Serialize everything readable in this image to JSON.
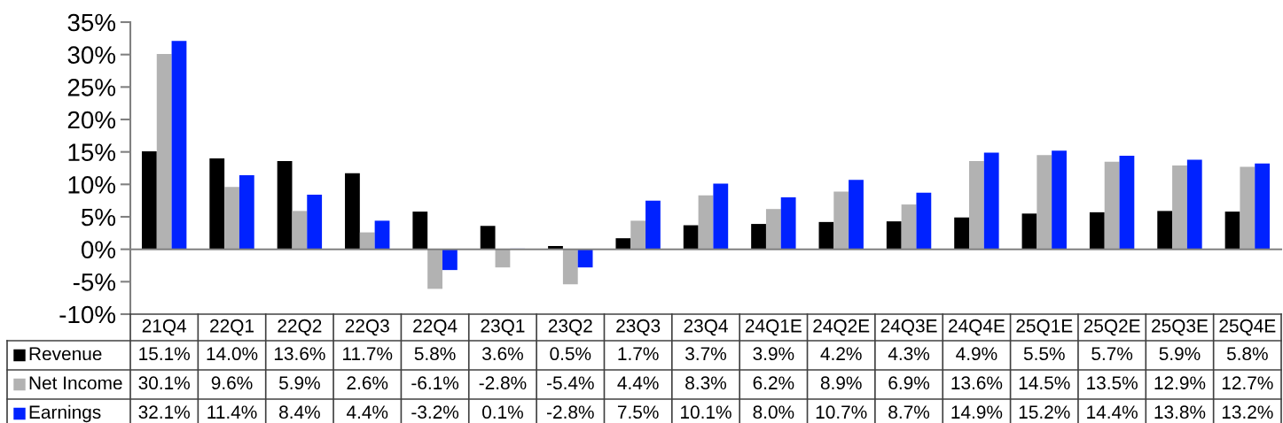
{
  "chart_data": {
    "type": "bar",
    "categories": [
      "21Q4",
      "22Q1",
      "22Q2",
      "22Q3",
      "22Q4",
      "23Q1",
      "23Q2",
      "23Q3",
      "23Q4",
      "24Q1E",
      "24Q2E",
      "24Q3E",
      "24Q4E",
      "25Q1E",
      "25Q2E",
      "25Q3E",
      "25Q4E"
    ],
    "series": [
      {
        "name": "Revenue",
        "color": "#000000",
        "values": [
          15.1,
          14.0,
          13.6,
          11.7,
          5.8,
          3.6,
          0.5,
          1.7,
          3.7,
          3.9,
          4.2,
          4.3,
          4.9,
          5.5,
          5.7,
          5.9,
          5.8
        ],
        "value_labels": [
          "15.1%",
          "14.0%",
          "13.6%",
          "11.7%",
          "5.8%",
          "3.6%",
          "0.5%",
          "1.7%",
          "3.7%",
          "3.9%",
          "4.2%",
          "4.3%",
          "4.9%",
          "5.5%",
          "5.7%",
          "5.9%",
          "5.8%"
        ]
      },
      {
        "name": "Net Income",
        "color": "#b2b2b2",
        "values": [
          30.1,
          9.6,
          5.9,
          2.6,
          -6.1,
          -2.8,
          -5.4,
          4.4,
          8.3,
          6.2,
          8.9,
          6.9,
          13.6,
          14.5,
          13.5,
          12.9,
          12.7
        ],
        "value_labels": [
          "30.1%",
          "9.6%",
          "5.9%",
          "2.6%",
          "-6.1%",
          "-2.8%",
          "-5.4%",
          "4.4%",
          "8.3%",
          "6.2%",
          "8.9%",
          "6.9%",
          "13.6%",
          "14.5%",
          "13.5%",
          "12.9%",
          "12.7%"
        ]
      },
      {
        "name": "Earnings",
        "color": "#0022ff",
        "values": [
          32.1,
          11.4,
          8.4,
          4.4,
          -3.2,
          0.1,
          -2.8,
          7.5,
          10.1,
          8.0,
          10.7,
          8.7,
          14.9,
          15.2,
          14.4,
          13.8,
          13.2
        ],
        "value_labels": [
          "32.1%",
          "11.4%",
          "8.4%",
          "4.4%",
          "-3.2%",
          "0.1%",
          "-2.8%",
          "7.5%",
          "10.1%",
          "8.0%",
          "10.7%",
          "8.7%",
          "14.9%",
          "15.2%",
          "14.4%",
          "13.8%",
          "13.2%"
        ]
      }
    ],
    "ylim": [
      -10,
      35
    ],
    "yticks": [
      {
        "value": -10,
        "label": "-10%"
      },
      {
        "value": -5,
        "label": "-5%"
      },
      {
        "value": 0,
        "label": "0%"
      },
      {
        "value": 5,
        "label": "5%"
      },
      {
        "value": 10,
        "label": "10%"
      },
      {
        "value": 15,
        "label": "15%"
      },
      {
        "value": 20,
        "label": "20%"
      },
      {
        "value": 25,
        "label": "25%"
      },
      {
        "value": 30,
        "label": "30%"
      },
      {
        "value": 35,
        "label": "35%"
      }
    ],
    "legend": "bottom left"
  }
}
